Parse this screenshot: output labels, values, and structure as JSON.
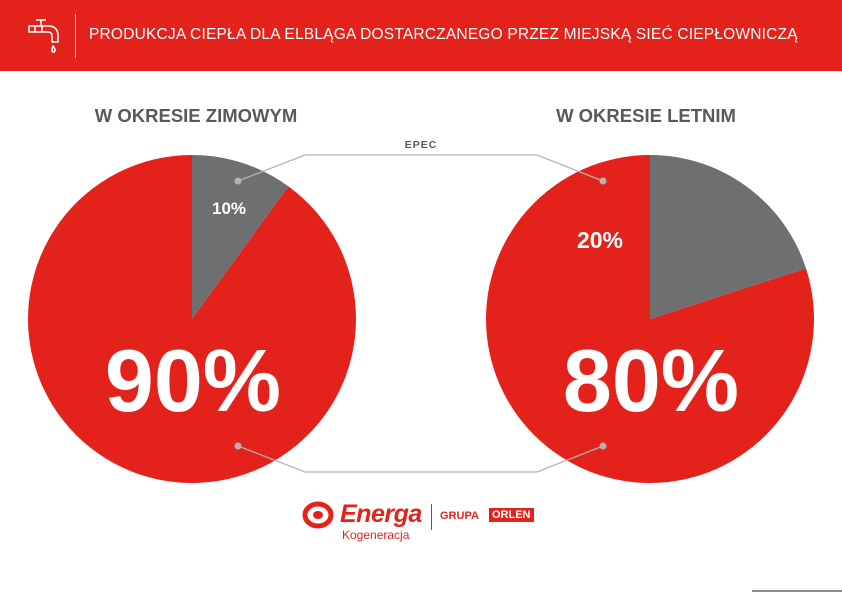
{
  "header": {
    "title": "PRODUKCJA CIEPŁA DLA ELBLĄGA DOSTARCZANEGO PRZEZ MIEJSKĄ SIEĆ CIEPŁOWNICZĄ",
    "icon": "faucet-icon"
  },
  "connector_label": "EPEC",
  "colors": {
    "primary": "#e3231b",
    "secondary": "#6d6f71",
    "connector": "#b3b3b3"
  },
  "chart_data": [
    {
      "type": "pie",
      "title": "W OKRESIE ZIMOWYM",
      "slices": [
        {
          "label": "90%",
          "value": 90,
          "color": "#e3231b"
        },
        {
          "label": "10%",
          "value": 10,
          "color": "#6d6f71"
        }
      ]
    },
    {
      "type": "pie",
      "title": "W OKRESIE LETNIM",
      "slices": [
        {
          "label": "80%",
          "value": 80,
          "color": "#e3231b"
        },
        {
          "label": "20%",
          "value": 20,
          "color": "#6d6f71"
        }
      ]
    }
  ],
  "footer": {
    "brand": "Energa",
    "brand_sub": "Kogeneracja",
    "group_label": "GRUPA",
    "group_badge": "ORLEN"
  }
}
